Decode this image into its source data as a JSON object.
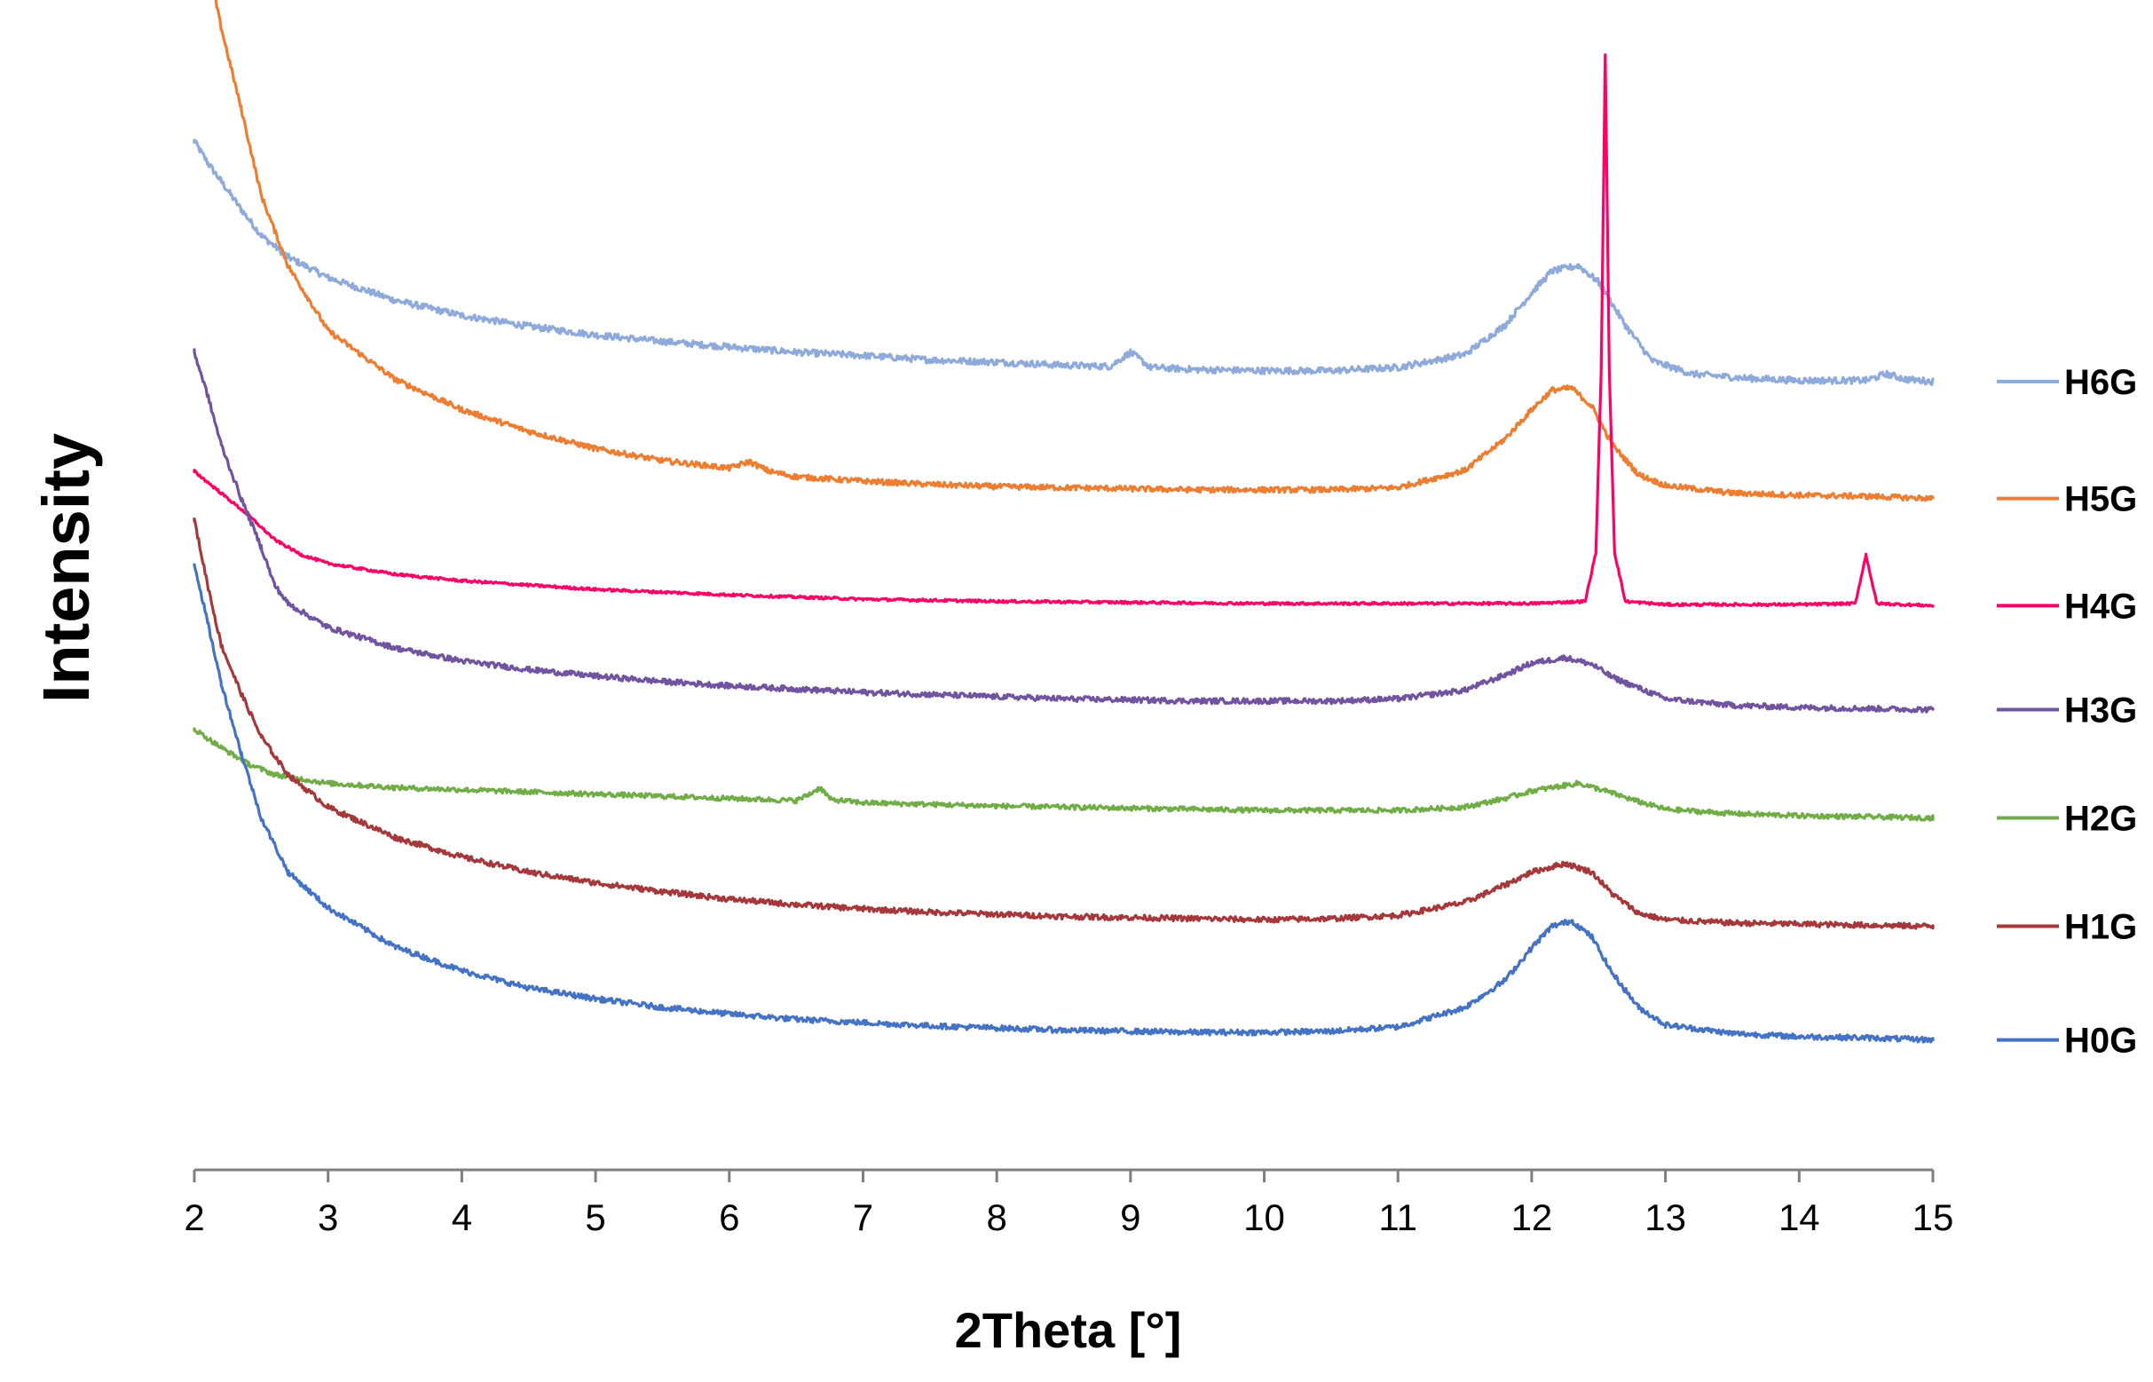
{
  "chart_data": {
    "type": "line",
    "title": "",
    "xlabel": "2Theta [°]",
    "ylabel": "Intensity",
    "xlim": [
      2,
      15
    ],
    "x_ticks": [
      "2",
      "3",
      "4",
      "5",
      "6",
      "7",
      "8",
      "9",
      "10",
      "11",
      "12",
      "13",
      "14",
      "15"
    ],
    "y_ticks_shown": false,
    "grid": false,
    "legend_position": "right",
    "series": [
      {
        "name": "H6G",
        "color": "#8eaadb",
        "offset": 7.25,
        "noise": 0.03,
        "points": [
          [
            2.0,
            2.25
          ],
          [
            2.1,
            2.05
          ],
          [
            2.2,
            1.88
          ],
          [
            2.35,
            1.62
          ],
          [
            2.5,
            1.38
          ],
          [
            2.7,
            1.18
          ],
          [
            3.0,
            0.99
          ],
          [
            3.5,
            0.78
          ],
          [
            4.0,
            0.64
          ],
          [
            4.5,
            0.54
          ],
          [
            5.0,
            0.46
          ],
          [
            5.5,
            0.4
          ],
          [
            6.0,
            0.35
          ],
          [
            6.5,
            0.3
          ],
          [
            7.0,
            0.27
          ],
          [
            7.5,
            0.23
          ],
          [
            8.0,
            0.21
          ],
          [
            8.5,
            0.18
          ],
          [
            8.85,
            0.17
          ],
          [
            9.0,
            0.3
          ],
          [
            9.15,
            0.16
          ],
          [
            9.5,
            0.14
          ],
          [
            10.0,
            0.13
          ],
          [
            10.5,
            0.13
          ],
          [
            11.0,
            0.16
          ],
          [
            11.5,
            0.28
          ],
          [
            11.8,
            0.55
          ],
          [
            12.0,
            0.85
          ],
          [
            12.15,
            1.05
          ],
          [
            12.35,
            1.1
          ],
          [
            12.5,
            0.95
          ],
          [
            12.7,
            0.55
          ],
          [
            12.9,
            0.22
          ],
          [
            13.2,
            0.1
          ],
          [
            13.6,
            0.06
          ],
          [
            14.0,
            0.04
          ],
          [
            14.5,
            0.04
          ],
          [
            14.65,
            0.1
          ],
          [
            14.8,
            0.05
          ],
          [
            15.0,
            0.03
          ]
        ]
      },
      {
        "name": "H5G",
        "color": "#ed7d31",
        "offset": 6.2,
        "noise": 0.025,
        "points": [
          [
            2.0,
            5.45
          ],
          [
            2.1,
            4.95
          ],
          [
            2.2,
            4.35
          ],
          [
            2.35,
            3.6
          ],
          [
            2.5,
            2.8
          ],
          [
            2.7,
            2.15
          ],
          [
            3.0,
            1.55
          ],
          [
            3.5,
            1.1
          ],
          [
            4.0,
            0.82
          ],
          [
            4.5,
            0.62
          ],
          [
            5.0,
            0.46
          ],
          [
            5.5,
            0.35
          ],
          [
            6.0,
            0.28
          ],
          [
            6.15,
            0.34
          ],
          [
            6.3,
            0.25
          ],
          [
            6.5,
            0.2
          ],
          [
            7.0,
            0.16
          ],
          [
            7.5,
            0.13
          ],
          [
            8.0,
            0.11
          ],
          [
            8.5,
            0.1
          ],
          [
            9.0,
            0.09
          ],
          [
            9.5,
            0.08
          ],
          [
            10.0,
            0.08
          ],
          [
            10.5,
            0.08
          ],
          [
            11.0,
            0.1
          ],
          [
            11.5,
            0.26
          ],
          [
            11.8,
            0.55
          ],
          [
            12.0,
            0.82
          ],
          [
            12.15,
            1.0
          ],
          [
            12.3,
            1.02
          ],
          [
            12.45,
            0.85
          ],
          [
            12.6,
            0.5
          ],
          [
            12.8,
            0.22
          ],
          [
            13.0,
            0.12
          ],
          [
            13.5,
            0.05
          ],
          [
            14.0,
            0.03
          ],
          [
            14.5,
            0.02
          ],
          [
            15.0,
            0.0
          ]
        ]
      },
      {
        "name": "H4G",
        "color": "#ff0066",
        "offset": 5.2,
        "noise": 0.012,
        "points": [
          [
            2.0,
            1.25
          ],
          [
            2.2,
            1.05
          ],
          [
            2.4,
            0.85
          ],
          [
            2.6,
            0.62
          ],
          [
            2.8,
            0.48
          ],
          [
            3.0,
            0.4
          ],
          [
            3.5,
            0.3
          ],
          [
            4.0,
            0.24
          ],
          [
            5.0,
            0.16
          ],
          [
            6.0,
            0.11
          ],
          [
            7.0,
            0.07
          ],
          [
            8.0,
            0.05
          ],
          [
            9.0,
            0.04
          ],
          [
            10.0,
            0.03
          ],
          [
            11.0,
            0.03
          ],
          [
            12.0,
            0.03
          ],
          [
            12.4,
            0.05
          ],
          [
            12.48,
            0.5
          ],
          [
            12.52,
            2.2
          ],
          [
            12.55,
            5.1
          ],
          [
            12.58,
            2.2
          ],
          [
            12.62,
            0.5
          ],
          [
            12.7,
            0.05
          ],
          [
            13.0,
            0.02
          ],
          [
            14.0,
            0.02
          ],
          [
            14.42,
            0.03
          ],
          [
            14.5,
            0.48
          ],
          [
            14.58,
            0.03
          ],
          [
            15.0,
            0.01
          ]
        ]
      },
      {
        "name": "H3G",
        "color": "#7153a0",
        "offset": 4.25,
        "noise": 0.025,
        "points": [
          [
            2.0,
            3.3
          ],
          [
            2.1,
            2.9
          ],
          [
            2.2,
            2.45
          ],
          [
            2.35,
            1.95
          ],
          [
            2.5,
            1.5
          ],
          [
            2.6,
            1.15
          ],
          [
            2.7,
            0.98
          ],
          [
            3.0,
            0.76
          ],
          [
            3.5,
            0.57
          ],
          [
            4.0,
            0.45
          ],
          [
            4.5,
            0.37
          ],
          [
            5.0,
            0.31
          ],
          [
            5.5,
            0.26
          ],
          [
            6.0,
            0.22
          ],
          [
            6.5,
            0.19
          ],
          [
            7.0,
            0.16
          ],
          [
            7.5,
            0.14
          ],
          [
            8.0,
            0.12
          ],
          [
            8.5,
            0.1
          ],
          [
            9.0,
            0.09
          ],
          [
            9.5,
            0.08
          ],
          [
            10.0,
            0.08
          ],
          [
            10.5,
            0.08
          ],
          [
            11.0,
            0.1
          ],
          [
            11.5,
            0.18
          ],
          [
            11.8,
            0.32
          ],
          [
            12.0,
            0.43
          ],
          [
            12.25,
            0.48
          ],
          [
            12.45,
            0.42
          ],
          [
            12.6,
            0.3
          ],
          [
            12.8,
            0.2
          ],
          [
            13.0,
            0.1
          ],
          [
            13.5,
            0.04
          ],
          [
            14.0,
            0.02
          ],
          [
            15.0,
            0.0
          ]
        ]
      },
      {
        "name": "H2G",
        "color": "#70ad47",
        "offset": 3.25,
        "noise": 0.022,
        "points": [
          [
            2.0,
            0.82
          ],
          [
            2.2,
            0.65
          ],
          [
            2.4,
            0.5
          ],
          [
            2.6,
            0.4
          ],
          [
            3.0,
            0.32
          ],
          [
            3.5,
            0.28
          ],
          [
            4.0,
            0.26
          ],
          [
            5.0,
            0.22
          ],
          [
            6.0,
            0.18
          ],
          [
            6.5,
            0.16
          ],
          [
            6.6,
            0.22
          ],
          [
            6.68,
            0.28
          ],
          [
            6.76,
            0.17
          ],
          [
            7.0,
            0.14
          ],
          [
            8.0,
            0.11
          ],
          [
            9.0,
            0.09
          ],
          [
            10.0,
            0.07
          ],
          [
            11.0,
            0.07
          ],
          [
            11.5,
            0.1
          ],
          [
            11.8,
            0.18
          ],
          [
            12.0,
            0.25
          ],
          [
            12.35,
            0.32
          ],
          [
            12.55,
            0.25
          ],
          [
            12.8,
            0.15
          ],
          [
            13.0,
            0.08
          ],
          [
            13.5,
            0.04
          ],
          [
            14.0,
            0.02
          ],
          [
            15.0,
            0.0
          ]
        ]
      },
      {
        "name": "H1G",
        "color": "#a5383b",
        "offset": 2.25,
        "noise": 0.025,
        "points": [
          [
            2.0,
            3.75
          ],
          [
            2.1,
            3.15
          ],
          [
            2.2,
            2.6
          ],
          [
            2.35,
            2.15
          ],
          [
            2.5,
            1.75
          ],
          [
            2.7,
            1.4
          ],
          [
            3.0,
            1.1
          ],
          [
            3.5,
            0.82
          ],
          [
            4.0,
            0.64
          ],
          [
            4.5,
            0.5
          ],
          [
            5.0,
            0.4
          ],
          [
            5.5,
            0.32
          ],
          [
            6.0,
            0.25
          ],
          [
            6.5,
            0.2
          ],
          [
            7.0,
            0.16
          ],
          [
            7.5,
            0.13
          ],
          [
            8.0,
            0.11
          ],
          [
            8.5,
            0.09
          ],
          [
            9.0,
            0.08
          ],
          [
            9.5,
            0.07
          ],
          [
            10.0,
            0.06
          ],
          [
            10.5,
            0.07
          ],
          [
            11.0,
            0.1
          ],
          [
            11.5,
            0.22
          ],
          [
            11.8,
            0.38
          ],
          [
            12.0,
            0.5
          ],
          [
            12.25,
            0.58
          ],
          [
            12.45,
            0.5
          ],
          [
            12.6,
            0.3
          ],
          [
            12.8,
            0.12
          ],
          [
            13.0,
            0.06
          ],
          [
            13.5,
            0.03
          ],
          [
            14.0,
            0.02
          ],
          [
            15.0,
            0.0
          ]
        ]
      },
      {
        "name": "H0G",
        "color": "#4472c4",
        "offset": 1.2,
        "noise": 0.025,
        "points": [
          [
            2.0,
            4.4
          ],
          [
            2.1,
            3.85
          ],
          [
            2.2,
            3.3
          ],
          [
            2.35,
            2.65
          ],
          [
            2.5,
            2.05
          ],
          [
            2.7,
            1.55
          ],
          [
            3.0,
            1.22
          ],
          [
            3.5,
            0.86
          ],
          [
            4.0,
            0.64
          ],
          [
            4.5,
            0.48
          ],
          [
            5.0,
            0.38
          ],
          [
            5.5,
            0.3
          ],
          [
            6.0,
            0.24
          ],
          [
            6.5,
            0.19
          ],
          [
            7.0,
            0.16
          ],
          [
            7.5,
            0.13
          ],
          [
            8.0,
            0.11
          ],
          [
            8.5,
            0.09
          ],
          [
            9.0,
            0.08
          ],
          [
            9.5,
            0.07
          ],
          [
            10.0,
            0.07
          ],
          [
            10.5,
            0.08
          ],
          [
            11.0,
            0.12
          ],
          [
            11.5,
            0.3
          ],
          [
            11.8,
            0.55
          ],
          [
            12.0,
            0.85
          ],
          [
            12.15,
            1.05
          ],
          [
            12.3,
            1.1
          ],
          [
            12.45,
            0.95
          ],
          [
            12.6,
            0.62
          ],
          [
            12.8,
            0.3
          ],
          [
            13.0,
            0.14
          ],
          [
            13.5,
            0.06
          ],
          [
            14.0,
            0.03
          ],
          [
            14.5,
            0.02
          ],
          [
            15.0,
            0.0
          ]
        ]
      }
    ]
  }
}
